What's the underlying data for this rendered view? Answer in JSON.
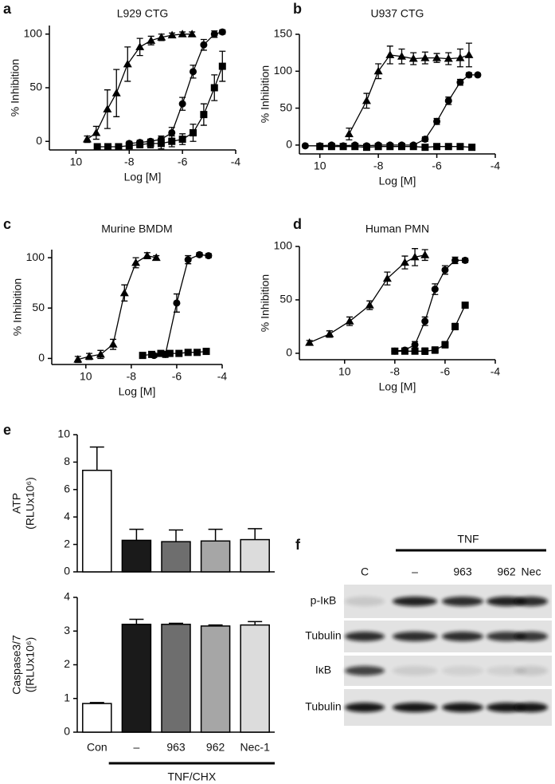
{
  "chart_data": [
    {
      "type": "scatter",
      "panel": "a",
      "title": "L929 CTG",
      "xlabel": "Log [M]",
      "ylabel": "% Inhibition",
      "xlim": [
        -11,
        -4
      ],
      "xticks": [
        {
          "value": -10,
          "label": "10"
        },
        -8,
        -6,
        -4
      ],
      "ylim": [
        -8,
        108
      ],
      "yticks": [
        0,
        50,
        100
      ],
      "fit_line": true,
      "series": [
        {
          "marker": "triangle",
          "color": "#000000",
          "x": [
            -9.58,
            -9.24,
            -8.82,
            -8.48,
            -8.06,
            -7.6,
            -7.18,
            -6.79,
            -6.39,
            -6.0,
            -5.64
          ],
          "values": [
            2,
            8,
            30,
            45,
            72,
            88,
            94,
            97,
            99,
            100,
            100
          ],
          "errors": [
            3,
            6,
            18,
            22,
            16,
            8,
            4,
            3,
            2,
            2,
            2
          ]
        },
        {
          "marker": "circle",
          "color": "#000000",
          "x": [
            -8.0,
            -7.6,
            -7.2,
            -6.8,
            -6.4,
            -6.0,
            -5.6,
            -5.2,
            -4.8,
            -4.5
          ],
          "values": [
            -2,
            -1,
            0,
            2,
            8,
            35,
            65,
            90,
            100,
            102
          ],
          "errors": [
            2,
            2,
            2,
            3,
            5,
            6,
            6,
            5,
            3,
            2
          ]
        },
        {
          "marker": "square",
          "color": "#000000",
          "x": [
            -9.2,
            -8.8,
            -8.4,
            -8.0,
            -7.6,
            -7.2,
            -6.8,
            -6.4,
            -6.0,
            -5.6,
            -5.2,
            -4.8,
            -4.5
          ],
          "values": [
            -5,
            -5,
            -5,
            -4,
            -3,
            -2,
            -2,
            0,
            2,
            8,
            25,
            50,
            70
          ],
          "errors": [
            2,
            2,
            2,
            3,
            3,
            4,
            5,
            5,
            5,
            8,
            10,
            12,
            14
          ]
        }
      ]
    },
    {
      "type": "scatter",
      "panel": "b",
      "title": "U937 CTG",
      "xlabel": "Log [M]",
      "ylabel": "% Inhibition",
      "xlim": [
        -10.7,
        -4
      ],
      "xticks": [
        {
          "value": -10,
          "label": "10"
        },
        -8,
        -6,
        -4
      ],
      "ylim": [
        -12,
        150
      ],
      "yticks": [
        0,
        50,
        100,
        150
      ],
      "fit_line": true,
      "series": [
        {
          "marker": "triangle",
          "color": "#000000",
          "x": [
            -9.0,
            -8.4,
            -8.0,
            -7.6,
            -7.2,
            -6.8,
            -6.4,
            -6.0,
            -5.6,
            -5.2,
            -4.9
          ],
          "values": [
            15,
            60,
            100,
            122,
            120,
            117,
            118,
            118,
            117,
            118,
            122
          ],
          "errors": [
            8,
            10,
            10,
            12,
            10,
            8,
            8,
            6,
            8,
            12,
            16
          ]
        },
        {
          "marker": "circle",
          "color": "#000000",
          "x": [
            -10.5,
            -10.0,
            -9.6,
            -9.2,
            -8.8,
            -8.4,
            -8.0,
            -7.6,
            -7.2,
            -6.8,
            -6.4,
            -6.0,
            -5.6,
            -5.2,
            -4.9,
            -4.6
          ],
          "values": [
            -1,
            -1,
            0,
            -1,
            0,
            -1,
            0,
            0,
            0,
            0,
            8,
            32,
            60,
            85,
            95,
            95
          ],
          "errors": [
            2,
            2,
            2,
            2,
            2,
            2,
            2,
            2,
            2,
            2,
            3,
            4,
            5,
            4,
            3,
            2
          ]
        },
        {
          "marker": "square",
          "color": "#000000",
          "x": [
            -10.0,
            -9.6,
            -9.2,
            -8.8,
            -8.4,
            -8.0,
            -7.6,
            -7.2,
            -6.8,
            -6.4,
            -6.0,
            -5.6,
            -5.2,
            -4.8
          ],
          "values": [
            -2,
            -2,
            -2,
            -2,
            -3,
            -2,
            -2,
            -2,
            -2,
            -3,
            -2,
            -2,
            -2,
            -3
          ],
          "errors": [
            2,
            2,
            2,
            2,
            2,
            2,
            2,
            2,
            2,
            2,
            2,
            2,
            2,
            2
          ]
        }
      ]
    },
    {
      "type": "scatter",
      "panel": "c",
      "title": "Murine BMDM",
      "xlabel": "Log [M]",
      "ylabel": "% Inhibition",
      "xlim": [
        -11.5,
        -4
      ],
      "xticks": [
        {
          "value": -10,
          "label": "10"
        },
        -8,
        -6,
        -4
      ],
      "ylim": [
        -6,
        108
      ],
      "yticks": [
        0,
        50,
        100
      ],
      "fit_line": true,
      "series": [
        {
          "marker": "triangle",
          "color": "#000000",
          "x": [
            -10.35,
            -9.85,
            -9.35,
            -8.8,
            -8.3,
            -7.8,
            -7.3,
            -6.9
          ],
          "values": [
            -1,
            2,
            4,
            14,
            65,
            95,
            102,
            100
          ],
          "errors": [
            3,
            3,
            4,
            5,
            8,
            5,
            3,
            2
          ]
        },
        {
          "marker": "circle",
          "color": "#000000",
          "x": [
            -7.0,
            -6.5,
            -6.0,
            -5.5,
            -5.0,
            -4.6
          ],
          "values": [
            3,
            4,
            55,
            98,
            103,
            102
          ],
          "errors": [
            2,
            3,
            9,
            4,
            2,
            2
          ]
        },
        {
          "marker": "square",
          "color": "#000000",
          "x": [
            -7.5,
            -7.1,
            -6.7,
            -6.3,
            -5.9,
            -5.5,
            -5.1,
            -4.7
          ],
          "values": [
            3,
            4,
            5,
            5,
            5,
            6,
            6,
            7
          ],
          "errors": [
            2,
            2,
            2,
            2,
            2,
            2,
            2,
            2
          ]
        }
      ]
    },
    {
      "type": "scatter",
      "panel": "d",
      "title": "Human PMN",
      "xlabel": "Log [M]",
      "ylabel": "% Inhibition",
      "xlim": [
        -11.8,
        -4
      ],
      "xticks": [
        {
          "value": -10,
          "label": "10"
        },
        -8,
        -6,
        -4
      ],
      "ylim": [
        -6,
        100
      ],
      "yticks": [
        0,
        50,
        100
      ],
      "fit_line": true,
      "series": [
        {
          "marker": "triangle",
          "color": "#000000",
          "x": [
            -11.4,
            -10.6,
            -9.8,
            -9.0,
            -8.3,
            -7.6,
            -7.2,
            -6.8
          ],
          "values": [
            10,
            18,
            30,
            45,
            70,
            85,
            90,
            92
          ],
          "errors": [
            2,
            3,
            4,
            4,
            6,
            6,
            8,
            5
          ]
        },
        {
          "marker": "circle",
          "color": "#000000",
          "x": [
            -8.0,
            -7.6,
            -7.2,
            -6.8,
            -6.4,
            -6.0,
            -5.6,
            -5.2
          ],
          "values": [
            2,
            3,
            8,
            30,
            60,
            78,
            87,
            87
          ],
          "errors": [
            2,
            2,
            3,
            4,
            5,
            4,
            3,
            2
          ]
        },
        {
          "marker": "square",
          "color": "#000000",
          "x": [
            -8.0,
            -7.6,
            -7.2,
            -6.8,
            -6.4,
            -6.0,
            -5.6,
            -5.2
          ],
          "values": [
            2,
            2,
            2,
            2,
            3,
            8,
            25,
            45
          ],
          "errors": [
            2,
            2,
            2,
            3,
            3,
            3,
            3,
            2
          ]
        }
      ]
    },
    {
      "type": "bar",
      "panel": "e",
      "ylabel": [
        "ATP",
        "(RLUx10⁶)"
      ],
      "ylim": [
        0,
        10
      ],
      "yticks": [
        0,
        2,
        4,
        6,
        8,
        10
      ],
      "values": [
        7.4,
        2.3,
        2.2,
        2.25,
        2.35
      ],
      "errors": [
        1.7,
        0.8,
        0.85,
        0.85,
        0.8
      ],
      "colors": [
        "#ffffff",
        "#1a1a1a",
        "#6e6e6e",
        "#a6a6a6",
        "#dcdcdc"
      ]
    },
    {
      "type": "bar",
      "ylabel": [
        "Caspase3/7",
        "([RLUx10⁶)"
      ],
      "categories": [
        "Con",
        "–",
        "963",
        "962",
        "Nec-1"
      ],
      "group_label": "TNF/CHX",
      "ylim": [
        0,
        4
      ],
      "yticks": [
        0,
        1,
        2,
        3,
        4
      ],
      "values": [
        0.85,
        3.2,
        3.2,
        3.15,
        3.18
      ],
      "errors": [
        0.03,
        0.15,
        0.03,
        0.03,
        0.1
      ],
      "colors": [
        "#ffffff",
        "#1a1a1a",
        "#6e6e6e",
        "#a6a6a6",
        "#dcdcdc"
      ]
    }
  ],
  "blot": {
    "panel": "f",
    "group": "TNF",
    "lanes": [
      "C",
      "–",
      "963",
      "962",
      "Nec"
    ],
    "rows": [
      "p-IκB",
      "Tubulin",
      "IκB",
      "Tubulin"
    ]
  }
}
